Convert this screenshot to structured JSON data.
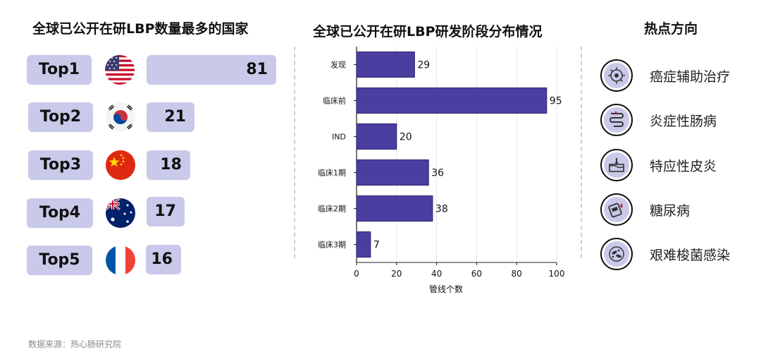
{
  "left_panel": {
    "title": "全球已公开在研LBP数量最多的国家",
    "countries": [
      {
        "rank": "Top1",
        "count": "81",
        "flag": "usa-flag-icon"
      },
      {
        "rank": "Top2",
        "count": "21",
        "flag": "south-korea-flag-icon"
      },
      {
        "rank": "Top3",
        "count": "18",
        "flag": "china-flag-icon"
      },
      {
        "rank": "Top4",
        "count": "17",
        "flag": "australia-flag-icon"
      },
      {
        "rank": "Top5",
        "count": "16",
        "flag": "france-flag-icon"
      }
    ]
  },
  "chart_data": {
    "type": "bar",
    "orientation": "horizontal",
    "title": "全球已公开在研LBP研发阶段分布情况",
    "categories": [
      "发现",
      "临床前",
      "IND",
      "临床1期",
      "临床2期",
      "临床3期"
    ],
    "values": [
      29,
      95,
      20,
      36,
      38,
      7
    ],
    "xlabel": "管线个数",
    "ylabel": "",
    "xlim": [
      0,
      100
    ],
    "xticks": [
      0,
      20,
      40,
      60,
      80,
      100
    ],
    "grid": true,
    "bar_color": "#4a3fa0"
  },
  "right_panel": {
    "title": "热点方向",
    "items": [
      {
        "label": "癌症辅助治疗",
        "icon": "cancer-cell-icon"
      },
      {
        "label": "炎症性肠病",
        "icon": "intestine-icon"
      },
      {
        "label": "特应性皮炎",
        "icon": "skin-icon"
      },
      {
        "label": "糖尿病",
        "icon": "glucose-meter-icon"
      },
      {
        "label": "艰难梭菌感染",
        "icon": "bacteria-icon"
      }
    ]
  },
  "source": "数据来源：热心肠研究院",
  "colors": {
    "pill": "#c9c9ea",
    "bar": "#4a3fa0",
    "accent": "#4a3fa0"
  }
}
